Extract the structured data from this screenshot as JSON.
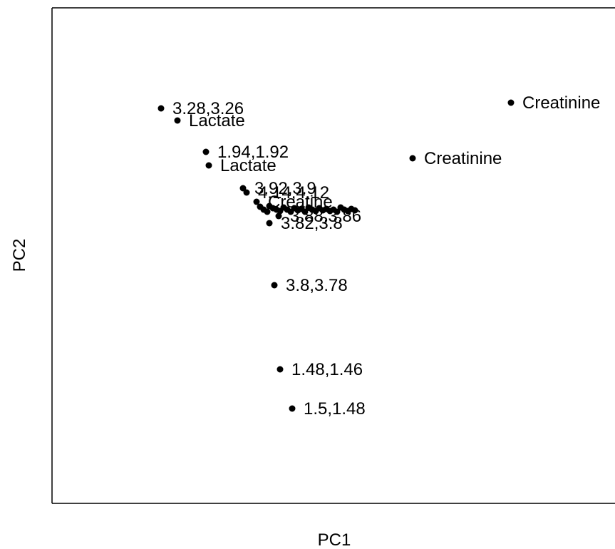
{
  "chart_data": {
    "type": "scatter",
    "xlabel": "PC1",
    "ylabel": "PC2",
    "grid": false,
    "legend": "none",
    "ticks_visible": false,
    "xlim": [
      0,
      790
    ],
    "ylim": [
      -695,
      0
    ],
    "colors": {
      "point": "#000000",
      "frame": "#000000",
      "text": "#000000",
      "background": "#ffffff"
    },
    "points": [
      {
        "x": 644,
        "y": -133,
        "label": "Creatinine"
      },
      {
        "x": 153,
        "y": -141,
        "label": "3.28,3.26"
      },
      {
        "x": 176,
        "y": -158,
        "label": "Lactate"
      },
      {
        "x": 506,
        "y": -211,
        "label": "Creatinine"
      },
      {
        "x": 216,
        "y": -202,
        "label": "1.94,1.92"
      },
      {
        "x": 220,
        "y": -221,
        "label": "Lactate"
      },
      {
        "x": 268,
        "y": -253,
        "label": "3.92,3.9"
      },
      {
        "x": 273,
        "y": -259,
        "label": "4.14,4.12"
      },
      {
        "x": 287,
        "y": -272,
        "label": "Creatine"
      },
      {
        "x": 292,
        "y": -279,
        "label": ""
      },
      {
        "x": 297,
        "y": -283,
        "label": ""
      },
      {
        "x": 302,
        "y": -286,
        "label": ""
      },
      {
        "x": 305,
        "y": -278,
        "label": ""
      },
      {
        "x": 310,
        "y": -281,
        "label": ""
      },
      {
        "x": 315,
        "y": -283,
        "label": ""
      },
      {
        "x": 320,
        "y": -285,
        "label": ""
      },
      {
        "x": 325,
        "y": -280,
        "label": ""
      },
      {
        "x": 330,
        "y": -283,
        "label": ""
      },
      {
        "x": 335,
        "y": -286,
        "label": ""
      },
      {
        "x": 340,
        "y": -281,
        "label": ""
      },
      {
        "x": 345,
        "y": -284,
        "label": ""
      },
      {
        "x": 350,
        "y": -282,
        "label": ""
      },
      {
        "x": 355,
        "y": -286,
        "label": ""
      },
      {
        "x": 360,
        "y": -280,
        "label": ""
      },
      {
        "x": 365,
        "y": -283,
        "label": ""
      },
      {
        "x": 370,
        "y": -285,
        "label": ""
      },
      {
        "x": 375,
        "y": -281,
        "label": ""
      },
      {
        "x": 380,
        "y": -284,
        "label": ""
      },
      {
        "x": 385,
        "y": -282,
        "label": ""
      },
      {
        "x": 390,
        "y": -285,
        "label": ""
      },
      {
        "x": 395,
        "y": -283,
        "label": ""
      },
      {
        "x": 400,
        "y": -286,
        "label": ""
      },
      {
        "x": 405,
        "y": -280,
        "label": ""
      },
      {
        "x": 410,
        "y": -283,
        "label": ""
      },
      {
        "x": 415,
        "y": -285,
        "label": ""
      },
      {
        "x": 420,
        "y": -282,
        "label": ""
      },
      {
        "x": 425,
        "y": -284,
        "label": ""
      },
      {
        "x": 318,
        "y": -292,
        "label": "3.88,3.86"
      },
      {
        "x": 305,
        "y": -302,
        "label": "3.82,3.8"
      },
      {
        "x": 312,
        "y": -389,
        "label": "3.8,3.78"
      },
      {
        "x": 320,
        "y": -507,
        "label": "1.48,1.46"
      },
      {
        "x": 337,
        "y": -562,
        "label": "1.5,1.48"
      }
    ]
  }
}
